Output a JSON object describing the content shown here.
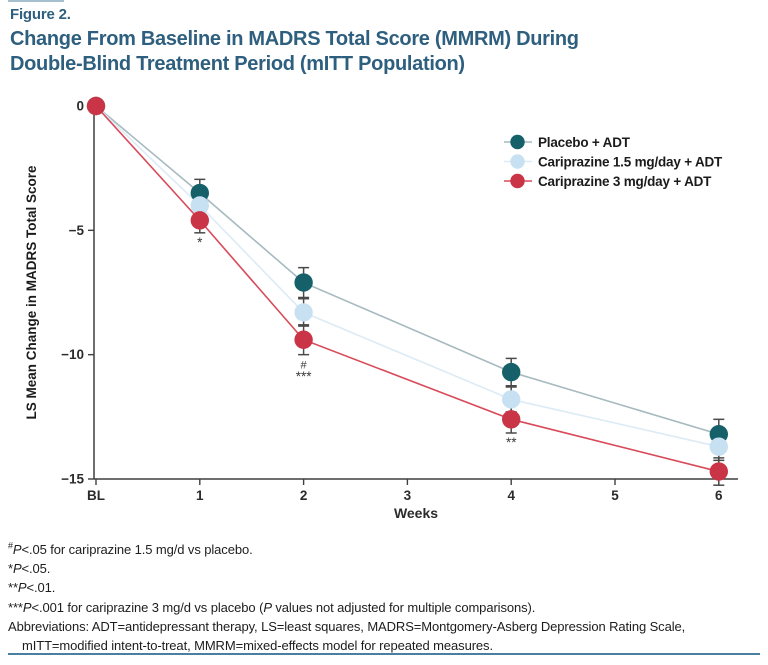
{
  "figure": {
    "label": "Figure 2.",
    "title_line1": "Change From Baseline in MADRS Total Score (MMRM) During",
    "title_line2": "Double-Blind Treatment Period (mITT Population)"
  },
  "colors": {
    "title": "#2e5f7e",
    "rule": "#4a7f9d",
    "axis": "#3f3f3f",
    "error_bar": "#4a4a4a",
    "annotation": "#3a3a3a",
    "tick_label": "#2b2b2b",
    "legend_text": "#1b1b1b",
    "footnote_text": "#1d1d1d"
  },
  "chart_data": {
    "type": "line",
    "title": "Change From Baseline in MADRS Total Score (MMRM) During Double-Blind Treatment Period (mITT Population)",
    "xlabel": "Weeks",
    "ylabel": "LS Mean Change in MADRS Total Score",
    "x_tick_labels": [
      "BL",
      "1",
      "2",
      "3",
      "4",
      "5",
      "6"
    ],
    "x_tick_weeks": [
      0,
      1,
      2,
      3,
      4,
      5,
      6
    ],
    "y_ticks": [
      0,
      -5,
      -10,
      -15
    ],
    "y_tick_labels": [
      "0",
      "−5",
      "−10",
      "−15"
    ],
    "ylim": [
      -15,
      0
    ],
    "grid": false,
    "legend_position": "upper right inside",
    "series": [
      {
        "name": "Placebo + ADT",
        "marker_color": "#166069",
        "line_color": "#a6babf",
        "weeks": [
          0,
          1,
          2,
          4,
          6
        ],
        "values": [
          0,
          -3.5,
          -7.1,
          -10.7,
          -13.2
        ],
        "errors": [
          0,
          0.55,
          0.6,
          0.55,
          0.6
        ]
      },
      {
        "name": "Cariprazine 1.5 mg/day + ADT",
        "marker_color": "#c8e1f2",
        "line_color": "#dcebf5",
        "weeks": [
          0,
          1,
          2,
          4,
          6
        ],
        "values": [
          0,
          -4.0,
          -8.3,
          -11.8,
          -13.7
        ],
        "errors": [
          0,
          0.5,
          0.55,
          0.5,
          0.55
        ]
      },
      {
        "name": "Cariprazine 3 mg/day + ADT",
        "marker_color": "#c93447",
        "line_color": "#d84a59",
        "weeks": [
          0,
          1,
          2,
          4,
          6
        ],
        "values": [
          0,
          -4.6,
          -9.4,
          -12.6,
          -14.7
        ],
        "errors": [
          0,
          0.5,
          0.6,
          0.55,
          0.55
        ]
      }
    ],
    "annotations": [
      {
        "week": 1,
        "symbols": [
          "*"
        ],
        "refers_to": "Cariprazine 3 mg/day + ADT"
      },
      {
        "week": 2,
        "symbols": [
          "#",
          "***"
        ],
        "refers_to": "Cariprazine 1.5 and 3 mg/day + ADT"
      },
      {
        "week": 4,
        "symbols": [
          "**"
        ],
        "refers_to": "Cariprazine 3 mg/day + ADT"
      }
    ]
  },
  "footnotes": [
    {
      "segments": [
        {
          "t": "#",
          "sup": true
        },
        {
          "t": "P",
          "i": true
        },
        {
          "t": "<.05 for cariprazine 1.5 mg/d vs placebo."
        }
      ]
    },
    {
      "segments": [
        {
          "t": "*"
        },
        {
          "t": "P",
          "i": true
        },
        {
          "t": "<.05."
        }
      ]
    },
    {
      "segments": [
        {
          "t": "**"
        },
        {
          "t": "P",
          "i": true
        },
        {
          "t": "<.01."
        }
      ]
    },
    {
      "segments": [
        {
          "t": "***"
        },
        {
          "t": "P",
          "i": true
        },
        {
          "t": "<.001 for cariprazine 3 mg/d vs placebo ("
        },
        {
          "t": "P",
          "i": true
        },
        {
          "t": " values not adjusted for multiple comparisons)."
        }
      ]
    },
    {
      "segments": [
        {
          "t": "Abbreviations: ADT=antidepressant therapy, LS=least squares, MADRS=Montgomery-Asberg Depression Rating Scale,"
        }
      ]
    },
    {
      "segments": [
        {
          "t": "mITT=modified intent-to-treat, MMRM=mixed-effects model for repeated measures."
        }
      ],
      "indent": true
    }
  ]
}
